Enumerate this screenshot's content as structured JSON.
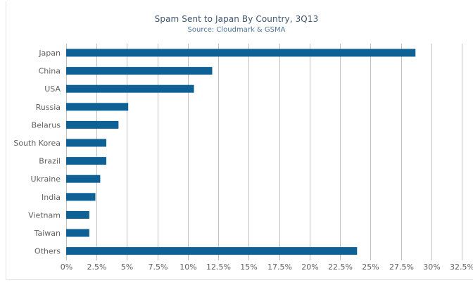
{
  "chart_data": {
    "type": "bar",
    "orientation": "horizontal",
    "title": "Spam Sent to Japan By Country, 3Q13",
    "subtitle": "Source: Cloudmark & GSMA",
    "xlabel": "",
    "ylabel": "",
    "categories": [
      "Japan",
      "China",
      "USA",
      "Russia",
      "Belarus",
      "South Korea",
      "Brazil",
      "Ukraine",
      "India",
      "Vietnam",
      "Taiwan",
      "Others"
    ],
    "values": [
      28.7,
      12.0,
      10.5,
      5.1,
      4.3,
      3.3,
      3.3,
      2.8,
      2.4,
      1.9,
      1.9,
      23.9
    ],
    "xlim": [
      0,
      32.5
    ],
    "x_ticks": [
      "0%",
      "2.5%",
      "5%",
      "7.5%",
      "10%",
      "12.5%",
      "15%",
      "17.5%",
      "20%",
      "22.5%",
      "25%",
      "27.5%",
      "30%",
      "32.5%"
    ],
    "x_tick_values": [
      0,
      2.5,
      5,
      7.5,
      10,
      12.5,
      15,
      17.5,
      20,
      22.5,
      25,
      27.5,
      30,
      32.5
    ],
    "grid": true,
    "legend": "none",
    "colors": {
      "bar": "#0e6194",
      "grid": "#c0c0c0",
      "axis_text": "#606060",
      "title": "#3e576f",
      "subtitle": "#4d759e"
    }
  }
}
